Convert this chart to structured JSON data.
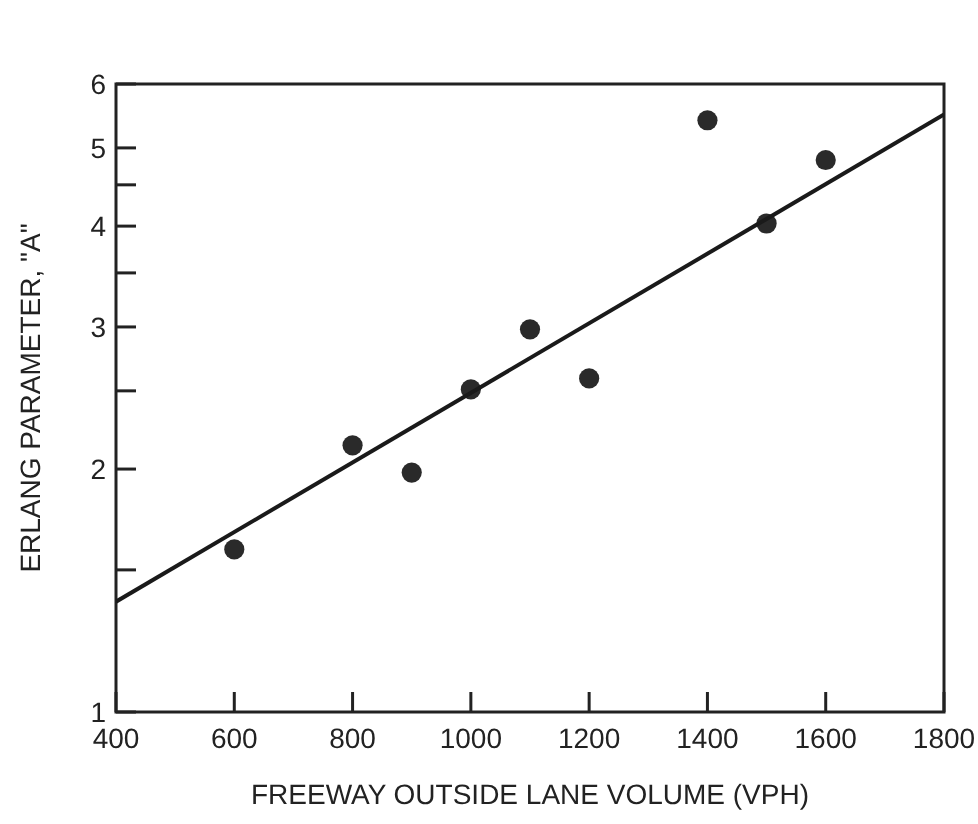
{
  "chart_data": {
    "type": "scatter",
    "xlabel": "FREEWAY OUTSIDE LANE VOLUME (VPH)",
    "ylabel": "ERLANG PARAMETER, \"A\"",
    "log": "y",
    "grid": false,
    "xlim": [
      400,
      1800
    ],
    "xticks": [
      400,
      600,
      800,
      1000,
      1200,
      1400,
      1600,
      1800
    ],
    "ylim": [
      1,
      6
    ],
    "yticks": [
      1,
      {
        "value": 1.5,
        "label": null
      },
      2,
      {
        "value": 2.5,
        "label": null
      },
      3,
      {
        "value": 3.5,
        "label": null
      },
      4,
      {
        "value": 4.5,
        "label": null
      },
      5,
      6
    ],
    "series": [
      {
        "marker": "circle",
        "color": "#2a2a2a",
        "x": [
          600,
          800,
          900,
          1000,
          1100,
          1200,
          1400,
          1500,
          1600
        ],
        "values": [
          1.59,
          2.14,
          1.98,
          2.51,
          2.98,
          2.59,
          5.41,
          4.03,
          4.83
        ]
      },
      {
        "type": "line",
        "color": "#1a1a1a",
        "x": [
          400,
          1800
        ],
        "values": [
          1.37,
          5.5
        ]
      }
    ]
  }
}
